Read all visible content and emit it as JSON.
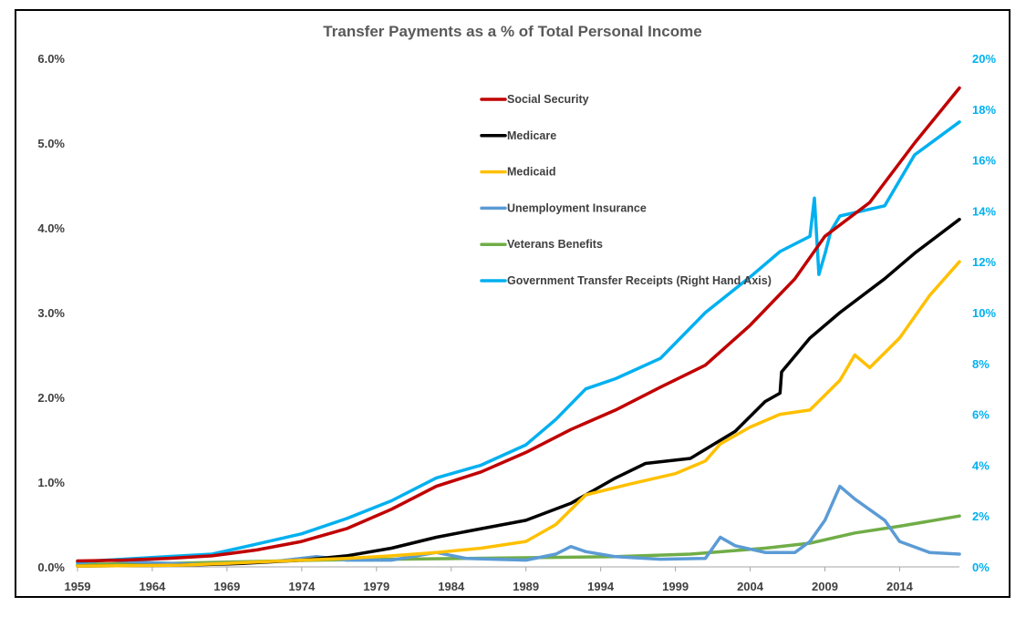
{
  "chart_data": {
    "type": "line",
    "title": "Transfer Payments as a % of Total Personal Income",
    "xlabel": "",
    "ylabel": "",
    "xlim": [
      1959,
      2018
    ],
    "ylim": [
      0,
      6
    ],
    "y2lim": [
      0,
      20
    ],
    "x_ticks": [
      "1959",
      "1964",
      "1969",
      "1974",
      "1979",
      "1984",
      "1989",
      "1994",
      "1999",
      "2004",
      "2009",
      "2014"
    ],
    "y_ticks": [
      "0.0%",
      "1.0%",
      "2.0%",
      "3.0%",
      "4.0%",
      "5.0%",
      "6.0%"
    ],
    "y2_ticks": [
      "0%",
      "2%",
      "4%",
      "6%",
      "8%",
      "10%",
      "12%",
      "14%",
      "16%",
      "18%",
      "20%"
    ],
    "legend_position": "top-center",
    "series": [
      {
        "name": "Social Security",
        "axis": "left",
        "color": "#c00000",
        "x": [
          1959,
          1962,
          1965,
          1968,
          1971,
          1974,
          1977,
          1980,
          1983,
          1986,
          1989,
          1992,
          1995,
          1998,
          2001,
          2004,
          2007,
          2009,
          2012,
          2015,
          2018
        ],
        "y": [
          0.07,
          0.08,
          0.1,
          0.13,
          0.2,
          0.3,
          0.45,
          0.68,
          0.95,
          1.12,
          1.35,
          1.62,
          1.85,
          2.12,
          2.38,
          2.85,
          3.4,
          3.9,
          4.3,
          5.0,
          5.65
        ]
      },
      {
        "name": "Medicare",
        "axis": "left",
        "color": "#000000",
        "x": [
          1959,
          1966,
          1970,
          1974,
          1977,
          1980,
          1983,
          1986,
          1989,
          1992,
          1995,
          1997,
          2000,
          2003,
          2005,
          2006,
          2006.1,
          2008,
          2010,
          2013,
          2015,
          2018
        ],
        "y": [
          0.01,
          0.02,
          0.04,
          0.08,
          0.13,
          0.22,
          0.35,
          0.45,
          0.55,
          0.75,
          1.05,
          1.22,
          1.28,
          1.6,
          1.95,
          2.05,
          2.3,
          2.7,
          3.0,
          3.4,
          3.7,
          4.1
        ]
      },
      {
        "name": "Medicaid",
        "axis": "left",
        "color": "#ffc000",
        "x": [
          1959,
          1966,
          1970,
          1974,
          1977,
          1980,
          1983,
          1986,
          1989,
          1991,
          1993,
          1996,
          1999,
          2001,
          2002,
          2004,
          2006,
          2008,
          2010,
          2011,
          2012,
          2014,
          2016,
          2018
        ],
        "y": [
          0.01,
          0.02,
          0.05,
          0.08,
          0.1,
          0.13,
          0.17,
          0.22,
          0.3,
          0.5,
          0.85,
          0.98,
          1.1,
          1.25,
          1.45,
          1.65,
          1.8,
          1.85,
          2.2,
          2.5,
          2.35,
          2.7,
          3.2,
          3.6
        ]
      },
      {
        "name": "Unemployment Insurance",
        "axis": "left",
        "color": "#5b9bd5",
        "x": [
          1959,
          1961,
          1964,
          1967,
          1970,
          1972,
          1975,
          1977,
          1980,
          1983,
          1985,
          1989,
          1991,
          1992,
          1993,
          1995,
          1998,
          2001,
          2002,
          2003,
          2005,
          2007,
          2008,
          2009,
          2010,
          2011,
          2013,
          2014,
          2016,
          2018
        ],
        "y": [
          0.05,
          0.08,
          0.05,
          0.03,
          0.05,
          0.06,
          0.12,
          0.08,
          0.08,
          0.17,
          0.1,
          0.08,
          0.15,
          0.24,
          0.18,
          0.12,
          0.09,
          0.1,
          0.35,
          0.25,
          0.17,
          0.17,
          0.3,
          0.55,
          0.95,
          0.8,
          0.55,
          0.3,
          0.17,
          0.15
        ]
      },
      {
        "name": "Veterans Benefits",
        "axis": "left",
        "color": "#70ad47",
        "x": [
          1959,
          1965,
          1970,
          1975,
          1980,
          1985,
          1990,
          1995,
          2000,
          2005,
          2008,
          2011,
          2014,
          2018
        ],
        "y": [
          0.03,
          0.04,
          0.06,
          0.08,
          0.09,
          0.1,
          0.11,
          0.12,
          0.15,
          0.22,
          0.28,
          0.4,
          0.48,
          0.6
        ]
      },
      {
        "name": "Government Transfer Receipts (Right Hand Axis)",
        "axis": "right",
        "color": "#00b0f0",
        "x": [
          1959,
          1962,
          1965,
          1968,
          1971,
          1974,
          1977,
          1980,
          1983,
          1986,
          1989,
          1991,
          1993,
          1995,
          1998,
          2001,
          2004,
          2006,
          2008,
          2008.3,
          2008.6,
          2009,
          2009.4,
          2010,
          2013,
          2015,
          2018
        ],
        "y": [
          0.2,
          0.3,
          0.4,
          0.5,
          0.9,
          1.3,
          1.9,
          2.6,
          3.5,
          4.0,
          4.8,
          5.8,
          7.0,
          7.4,
          8.2,
          10.0,
          11.4,
          12.4,
          13.0,
          14.5,
          11.5,
          12.3,
          13.2,
          13.8,
          14.2,
          16.2,
          17.5
        ]
      }
    ]
  }
}
